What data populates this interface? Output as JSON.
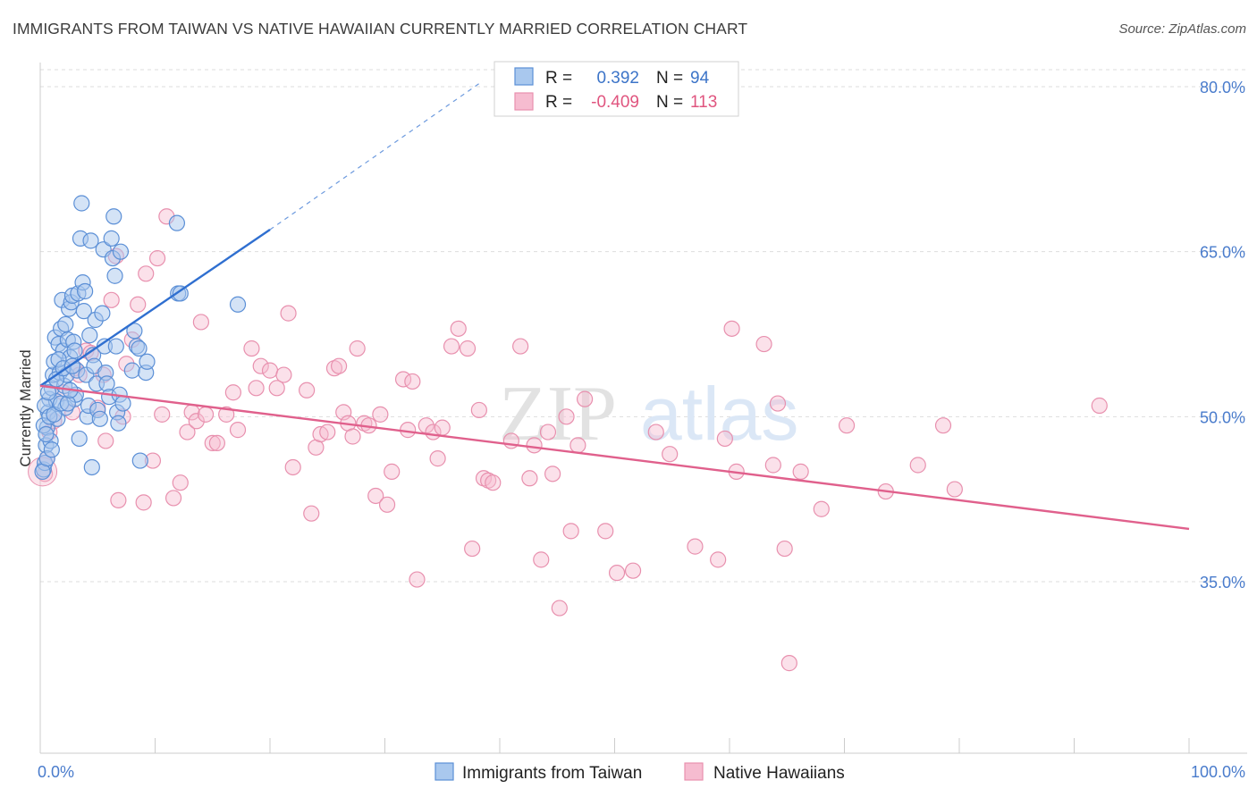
{
  "title": "IMMIGRANTS FROM TAIWAN VS NATIVE HAWAIIAN CURRENTLY MARRIED CORRELATION CHART",
  "source": "Source: ZipAtlas.com",
  "watermark": {
    "zip": "ZIP",
    "atlas": "atlas"
  },
  "colors": {
    "blue_fill": "#a9c8ee",
    "blue_stroke": "#5b8fd6",
    "blue_line": "#2f6fd0",
    "pink_fill": "#f6bcd0",
    "pink_stroke": "#e890ae",
    "pink_line": "#e0608c",
    "grid": "#dddddd",
    "tick_label": "#4a7ccc"
  },
  "legend": {
    "rows": [
      {
        "r_label": "R =",
        "r_value": "0.392",
        "n_label": "N =",
        "n_value": "94"
      },
      {
        "r_label": "R =",
        "r_value": "-0.409",
        "n_label": "N =",
        "n_value": "113"
      }
    ]
  },
  "bottom_legend": [
    "Immigrants from Taiwan",
    "Native Hawaiians"
  ],
  "chart_data": {
    "type": "scatter",
    "ylabel": "Currently Married",
    "x_tick_labels": [
      "0.0%",
      "100.0%"
    ],
    "y_tick_labels": [
      "80.0%",
      "65.0%",
      "50.0%",
      "35.0%"
    ],
    "xlim": [
      0,
      100
    ],
    "ylim": [
      20,
      83
    ],
    "y_gridlines": [
      80,
      65,
      50,
      35
    ],
    "series": [
      {
        "name": "Immigrants from Taiwan",
        "trend": {
          "x0": 0,
          "y0": 52.8,
          "x1": 20,
          "y1": 67.0,
          "dashed_to_x": 38.5,
          "dashed_to_y": 80.5
        },
        "points": [
          [
            0.3,
            45.2
          ],
          [
            0.4,
            45.8
          ],
          [
            0.5,
            47.4
          ],
          [
            0.6,
            49.0
          ],
          [
            0.7,
            50.4
          ],
          [
            0.8,
            51.6
          ],
          [
            0.9,
            47.8
          ],
          [
            1.0,
            52.6
          ],
          [
            1.1,
            53.8
          ],
          [
            1.2,
            55.0
          ],
          [
            1.3,
            57.2
          ],
          [
            1.4,
            51.4
          ],
          [
            1.5,
            49.8
          ],
          [
            1.6,
            56.6
          ],
          [
            1.7,
            54.0
          ],
          [
            1.8,
            58.0
          ],
          [
            1.9,
            60.6
          ],
          [
            2.0,
            56.0
          ],
          [
            2.1,
            52.8
          ],
          [
            2.2,
            50.8
          ],
          [
            2.3,
            53.8
          ],
          [
            2.4,
            57.0
          ],
          [
            2.5,
            59.8
          ],
          [
            2.6,
            55.4
          ],
          [
            2.7,
            60.4
          ],
          [
            2.8,
            61.0
          ],
          [
            2.9,
            56.8
          ],
          [
            3.0,
            51.6
          ],
          [
            3.1,
            52.0
          ],
          [
            3.2,
            54.2
          ],
          [
            3.3,
            61.2
          ],
          [
            3.4,
            48.0
          ],
          [
            3.5,
            66.2
          ],
          [
            3.6,
            69.4
          ],
          [
            3.7,
            62.2
          ],
          [
            3.8,
            59.6
          ],
          [
            3.9,
            61.4
          ],
          [
            4.0,
            53.8
          ],
          [
            4.1,
            50.0
          ],
          [
            4.2,
            51.0
          ],
          [
            4.3,
            57.4
          ],
          [
            4.4,
            66.0
          ],
          [
            4.5,
            45.4
          ],
          [
            4.6,
            55.6
          ],
          [
            4.7,
            54.6
          ],
          [
            4.8,
            58.8
          ],
          [
            4.9,
            53.0
          ],
          [
            5.0,
            50.6
          ],
          [
            5.2,
            49.8
          ],
          [
            5.4,
            59.4
          ],
          [
            5.5,
            65.2
          ],
          [
            5.6,
            56.4
          ],
          [
            5.7,
            54.0
          ],
          [
            5.8,
            53.0
          ],
          [
            6.0,
            51.8
          ],
          [
            6.2,
            66.2
          ],
          [
            6.3,
            64.4
          ],
          [
            6.4,
            68.2
          ],
          [
            6.5,
            62.8
          ],
          [
            6.6,
            56.4
          ],
          [
            6.7,
            50.4
          ],
          [
            6.8,
            49.4
          ],
          [
            6.9,
            52.0
          ],
          [
            7.0,
            65.0
          ],
          [
            7.2,
            51.2
          ],
          [
            8.0,
            54.2
          ],
          [
            8.2,
            57.8
          ],
          [
            8.4,
            56.4
          ],
          [
            8.6,
            56.2
          ],
          [
            8.7,
            46.0
          ],
          [
            9.2,
            54.0
          ],
          [
            9.3,
            55.0
          ],
          [
            12.0,
            61.2
          ],
          [
            12.2,
            61.2
          ],
          [
            11.9,
            67.6
          ],
          [
            17.2,
            60.2
          ],
          [
            0.2,
            45.0
          ],
          [
            0.3,
            49.2
          ],
          [
            0.4,
            51.0
          ],
          [
            0.5,
            48.4
          ],
          [
            0.6,
            46.2
          ],
          [
            0.7,
            52.2
          ],
          [
            0.8,
            50.0
          ],
          [
            1.0,
            47.0
          ],
          [
            1.2,
            50.2
          ],
          [
            1.4,
            53.4
          ],
          [
            1.6,
            55.2
          ],
          [
            1.8,
            51.2
          ],
          [
            2.0,
            54.4
          ],
          [
            2.2,
            58.4
          ],
          [
            2.4,
            51.2
          ],
          [
            2.6,
            52.4
          ],
          [
            2.8,
            54.6
          ],
          [
            3.0,
            56.0
          ]
        ]
      },
      {
        "name": "Native Hawaiians",
        "trend": {
          "x0": 0,
          "y0": 52.8,
          "x1": 100,
          "y1": 39.8
        },
        "points": [
          [
            0.4,
            44.8
          ],
          [
            0.6,
            46.2
          ],
          [
            0.8,
            48.6
          ],
          [
            1.2,
            49.6
          ],
          [
            2.0,
            52.2
          ],
          [
            2.8,
            50.4
          ],
          [
            3.0,
            54.4
          ],
          [
            3.4,
            53.8
          ],
          [
            4.0,
            56.0
          ],
          [
            4.4,
            55.8
          ],
          [
            5.0,
            50.8
          ],
          [
            5.5,
            53.8
          ],
          [
            5.7,
            47.8
          ],
          [
            6.2,
            60.6
          ],
          [
            6.6,
            64.6
          ],
          [
            6.8,
            42.4
          ],
          [
            7.2,
            50.0
          ],
          [
            7.5,
            54.8
          ],
          [
            8.0,
            57.0
          ],
          [
            8.5,
            60.2
          ],
          [
            9.0,
            42.2
          ],
          [
            9.2,
            63.0
          ],
          [
            9.8,
            46.0
          ],
          [
            10.2,
            64.4
          ],
          [
            10.6,
            50.2
          ],
          [
            11.0,
            68.2
          ],
          [
            11.6,
            42.6
          ],
          [
            12.2,
            44.0
          ],
          [
            12.8,
            48.6
          ],
          [
            13.2,
            50.4
          ],
          [
            13.6,
            49.6
          ],
          [
            14.0,
            58.6
          ],
          [
            14.4,
            50.2
          ],
          [
            15.0,
            47.6
          ],
          [
            15.4,
            47.6
          ],
          [
            16.2,
            50.2
          ],
          [
            16.8,
            52.2
          ],
          [
            17.2,
            48.8
          ],
          [
            18.4,
            56.2
          ],
          [
            18.8,
            52.6
          ],
          [
            19.2,
            54.6
          ],
          [
            20.0,
            54.2
          ],
          [
            20.6,
            52.6
          ],
          [
            21.2,
            53.8
          ],
          [
            21.6,
            59.4
          ],
          [
            22.0,
            45.4
          ],
          [
            23.2,
            52.4
          ],
          [
            23.6,
            41.2
          ],
          [
            24.0,
            47.2
          ],
          [
            24.4,
            48.4
          ],
          [
            25.0,
            48.6
          ],
          [
            25.6,
            54.4
          ],
          [
            26.0,
            54.6
          ],
          [
            26.4,
            50.4
          ],
          [
            26.8,
            49.4
          ],
          [
            27.2,
            48.2
          ],
          [
            27.6,
            56.2
          ],
          [
            28.2,
            49.4
          ],
          [
            28.6,
            49.2
          ],
          [
            29.2,
            42.8
          ],
          [
            29.6,
            50.2
          ],
          [
            30.2,
            42.0
          ],
          [
            30.6,
            45.0
          ],
          [
            31.6,
            53.4
          ],
          [
            32.0,
            48.8
          ],
          [
            32.4,
            53.2
          ],
          [
            32.8,
            35.2
          ],
          [
            33.6,
            49.2
          ],
          [
            34.2,
            48.6
          ],
          [
            34.6,
            46.2
          ],
          [
            35.0,
            49.0
          ],
          [
            35.8,
            56.4
          ],
          [
            36.4,
            58.0
          ],
          [
            37.2,
            56.2
          ],
          [
            37.6,
            38.0
          ],
          [
            38.2,
            50.6
          ],
          [
            38.6,
            44.4
          ],
          [
            39.0,
            44.2
          ],
          [
            39.4,
            44.0
          ],
          [
            41.0,
            47.8
          ],
          [
            41.8,
            56.4
          ],
          [
            42.6,
            44.4
          ],
          [
            43.0,
            47.4
          ],
          [
            43.6,
            37.0
          ],
          [
            44.2,
            48.6
          ],
          [
            44.6,
            44.8
          ],
          [
            45.2,
            32.6
          ],
          [
            45.8,
            50.0
          ],
          [
            46.2,
            39.6
          ],
          [
            46.8,
            47.4
          ],
          [
            47.4,
            51.6
          ],
          [
            49.2,
            39.6
          ],
          [
            50.2,
            35.8
          ],
          [
            51.6,
            36.0
          ],
          [
            53.6,
            48.6
          ],
          [
            54.8,
            46.6
          ],
          [
            57.0,
            38.2
          ],
          [
            59.0,
            37.0
          ],
          [
            59.6,
            48.0
          ],
          [
            60.2,
            58.0
          ],
          [
            60.6,
            45.0
          ],
          [
            63.0,
            56.6
          ],
          [
            63.8,
            45.6
          ],
          [
            64.2,
            51.2
          ],
          [
            64.8,
            38.0
          ],
          [
            65.2,
            27.6
          ],
          [
            66.2,
            45.0
          ],
          [
            68.0,
            41.6
          ],
          [
            70.2,
            49.2
          ],
          [
            73.6,
            43.2
          ],
          [
            76.4,
            45.6
          ],
          [
            78.6,
            49.2
          ],
          [
            79.6,
            43.4
          ],
          [
            92.2,
            51.0
          ]
        ]
      }
    ]
  }
}
